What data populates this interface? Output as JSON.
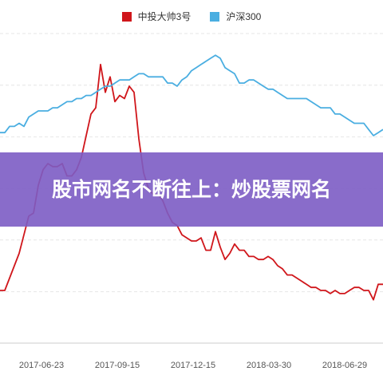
{
  "banner": {
    "title": "股市网名不断往上：炒股票网名"
  },
  "chart_data": {
    "type": "line",
    "title": "",
    "xlabel": "",
    "ylabel": "",
    "grid": true,
    "legend_position": "top-center",
    "x_tick_labels": [
      "2017-06-23",
      "2017-09-15",
      "2017-12-15",
      "2018-03-30",
      "2018-06-29"
    ],
    "x_range": [
      0,
      80
    ],
    "y_range": [
      0,
      100
    ],
    "series": [
      {
        "name": "中投大帅3号",
        "color": "#d0161b",
        "x": [
          0,
          1,
          2,
          3,
          4,
          5,
          6,
          7,
          8,
          9,
          10,
          11,
          12,
          13,
          14,
          15,
          16,
          17,
          18,
          19,
          20,
          21,
          22,
          23,
          24,
          25,
          26,
          27,
          28,
          29,
          30,
          31,
          32,
          33,
          34,
          35,
          36,
          37,
          38,
          39,
          40,
          41,
          42,
          43,
          44,
          45,
          46,
          47,
          48,
          49,
          50,
          51,
          52,
          53,
          54,
          55,
          56,
          57,
          58,
          59,
          60,
          61,
          62,
          63,
          64,
          65,
          66,
          67,
          68,
          69,
          70,
          71,
          72,
          73,
          74,
          75,
          76,
          77,
          78,
          79,
          80
        ],
        "values": [
          17,
          17,
          21,
          25,
          29,
          35,
          41,
          42,
          51,
          56,
          58,
          57,
          57,
          58,
          54,
          54,
          56,
          60,
          67,
          74,
          76,
          90,
          81,
          86,
          78,
          80,
          79,
          83,
          81,
          66,
          55,
          50,
          48,
          48,
          46,
          42,
          39,
          38,
          35,
          34,
          33,
          33,
          34,
          30,
          30,
          36,
          31,
          27,
          29,
          32,
          30,
          30,
          28,
          28,
          27,
          27,
          28,
          27,
          25,
          24,
          22,
          22,
          21,
          20,
          19,
          18,
          18,
          17,
          17,
          16,
          17,
          16,
          16,
          17,
          18,
          18,
          17,
          17,
          14,
          19,
          19
        ]
      },
      {
        "name": "沪深300",
        "color": "#4aaee1",
        "x": [
          0,
          1,
          2,
          3,
          4,
          5,
          6,
          7,
          8,
          9,
          10,
          11,
          12,
          13,
          14,
          15,
          16,
          17,
          18,
          19,
          20,
          21,
          22,
          23,
          24,
          25,
          26,
          27,
          28,
          29,
          30,
          31,
          32,
          33,
          34,
          35,
          36,
          37,
          38,
          39,
          40,
          41,
          42,
          43,
          44,
          45,
          46,
          47,
          48,
          49,
          50,
          51,
          52,
          53,
          54,
          55,
          56,
          57,
          58,
          59,
          60,
          61,
          62,
          63,
          64,
          65,
          66,
          67,
          68,
          69,
          70,
          71,
          72,
          73,
          74,
          75,
          76,
          77,
          78,
          79,
          80
        ],
        "values": [
          68,
          68,
          70,
          70,
          71,
          70,
          73,
          74,
          75,
          75,
          75,
          76,
          76,
          77,
          78,
          78,
          79,
          79,
          80,
          80,
          81,
          82,
          83,
          83,
          84,
          85,
          85,
          85,
          86,
          87,
          87,
          86,
          86,
          86,
          86,
          84,
          84,
          83,
          85,
          86,
          88,
          89,
          90,
          91,
          92,
          93,
          92,
          89,
          88,
          87,
          84,
          84,
          85,
          85,
          84,
          83,
          82,
          82,
          81,
          80,
          79,
          79,
          79,
          79,
          79,
          78,
          77,
          76,
          76,
          76,
          74,
          74,
          73,
          72,
          71,
          71,
          71,
          69,
          67,
          68,
          69
        ]
      }
    ]
  }
}
